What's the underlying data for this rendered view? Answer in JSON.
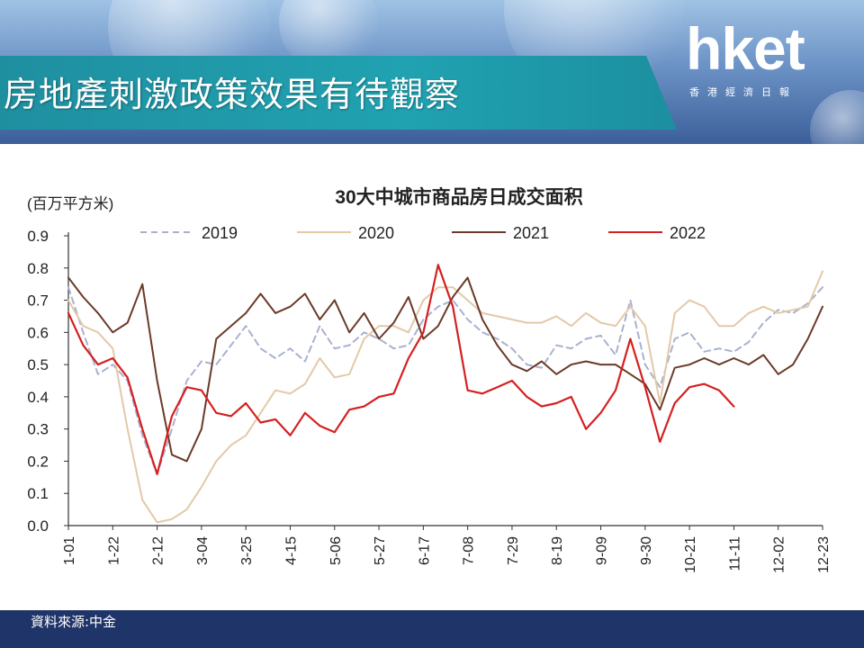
{
  "header": {
    "title": "房地產刺激政策效果有待觀察",
    "logo_main": "hket",
    "logo_sub": "香港經濟日報"
  },
  "footer": {
    "source": "資料來源:中金"
  },
  "colors": {
    "2019": "#a9b1cf",
    "2020": "#e3c9a8",
    "2021": "#6b3a28",
    "2022": "#d61f1f",
    "title_bar": "#20a2b1",
    "footer_bar": "#1f3468"
  },
  "chart_data": {
    "type": "line",
    "title": "30大中城市商品房日成交面积",
    "ylabel": "(百万平方米)",
    "xlabel": "",
    "ylim": [
      0.0,
      0.9
    ],
    "yticks": [
      "0.0",
      "0.1",
      "0.2",
      "0.3",
      "0.4",
      "0.5",
      "0.6",
      "0.7",
      "0.8",
      "0.9"
    ],
    "xticks": [
      "1-01",
      "1-22",
      "2-12",
      "3-04",
      "3-25",
      "4-15",
      "5-06",
      "5-27",
      "6-17",
      "7-08",
      "7-29",
      "8-19",
      "9-09",
      "9-30",
      "10-21",
      "11-11",
      "12-02",
      "12-23"
    ],
    "legend_position": "top",
    "x": [
      0,
      7,
      14,
      21,
      28,
      35,
      42,
      49,
      56,
      63,
      70,
      77,
      84,
      91,
      98,
      105,
      112,
      119,
      126,
      133,
      140,
      147,
      154,
      161,
      168,
      175,
      182,
      189,
      196,
      203,
      210,
      217,
      224,
      231,
      238,
      245,
      252,
      259,
      266,
      273,
      280,
      287,
      294,
      301,
      308,
      315,
      322,
      329,
      336,
      343,
      350,
      357
    ],
    "series": [
      {
        "name": "2019",
        "style": "dashed",
        "values": [
          0.74,
          0.6,
          0.47,
          0.5,
          0.45,
          0.28,
          0.16,
          0.3,
          0.45,
          0.51,
          0.5,
          0.56,
          0.62,
          0.55,
          0.52,
          0.55,
          0.51,
          0.62,
          0.55,
          0.56,
          0.6,
          0.58,
          0.55,
          0.56,
          0.64,
          0.68,
          0.7,
          0.64,
          0.6,
          0.58,
          0.55,
          0.5,
          0.49,
          0.56,
          0.55,
          0.58,
          0.59,
          0.53,
          0.7,
          0.5,
          0.43,
          0.58,
          0.6,
          0.54,
          0.55,
          0.54,
          0.57,
          0.63,
          0.67,
          0.66,
          0.69,
          0.74
        ]
      },
      {
        "name": "2020",
        "style": "solid",
        "values": [
          0.7,
          0.62,
          0.6,
          0.55,
          0.3,
          0.08,
          0.01,
          0.02,
          0.05,
          0.12,
          0.2,
          0.25,
          0.28,
          0.35,
          0.42,
          0.41,
          0.44,
          0.52,
          0.46,
          0.47,
          0.58,
          0.62,
          0.62,
          0.6,
          0.7,
          0.74,
          0.74,
          0.7,
          0.66,
          0.65,
          0.64,
          0.63,
          0.63,
          0.65,
          0.62,
          0.66,
          0.63,
          0.62,
          0.68,
          0.62,
          0.38,
          0.66,
          0.7,
          0.68,
          0.62,
          0.62,
          0.66,
          0.68,
          0.66,
          0.67,
          0.68,
          0.79
        ]
      },
      {
        "name": "2021",
        "style": "solid",
        "values": [
          0.77,
          0.71,
          0.66,
          0.6,
          0.63,
          0.75,
          0.45,
          0.22,
          0.2,
          0.3,
          0.58,
          0.62,
          0.66,
          0.72,
          0.66,
          0.68,
          0.72,
          0.64,
          0.7,
          0.6,
          0.66,
          0.58,
          0.63,
          0.71,
          0.58,
          0.62,
          0.71,
          0.77,
          0.64,
          0.56,
          0.5,
          0.48,
          0.51,
          0.47,
          0.5,
          0.51,
          0.5,
          0.5,
          0.47,
          0.44,
          0.36,
          0.49,
          0.5,
          0.52,
          0.5,
          0.52,
          0.5,
          0.53,
          0.47,
          0.5,
          0.58,
          0.68
        ]
      },
      {
        "name": "2022",
        "style": "solid",
        "values": [
          0.66,
          0.56,
          0.5,
          0.52,
          0.46,
          0.3,
          0.16,
          0.34,
          0.43,
          0.42,
          0.35,
          0.34,
          0.38,
          0.32,
          0.33,
          0.28,
          0.35,
          0.31,
          0.29,
          0.36,
          0.37,
          0.4,
          0.41,
          0.52,
          0.6,
          0.81,
          0.68,
          0.42,
          0.41,
          0.43,
          0.45,
          0.4,
          0.37,
          0.38,
          0.4,
          0.3,
          0.35,
          0.42,
          0.58,
          0.43,
          0.26,
          0.38,
          0.43,
          0.44,
          0.42,
          0.37,
          null,
          null,
          null,
          null,
          null,
          null
        ]
      }
    ]
  }
}
